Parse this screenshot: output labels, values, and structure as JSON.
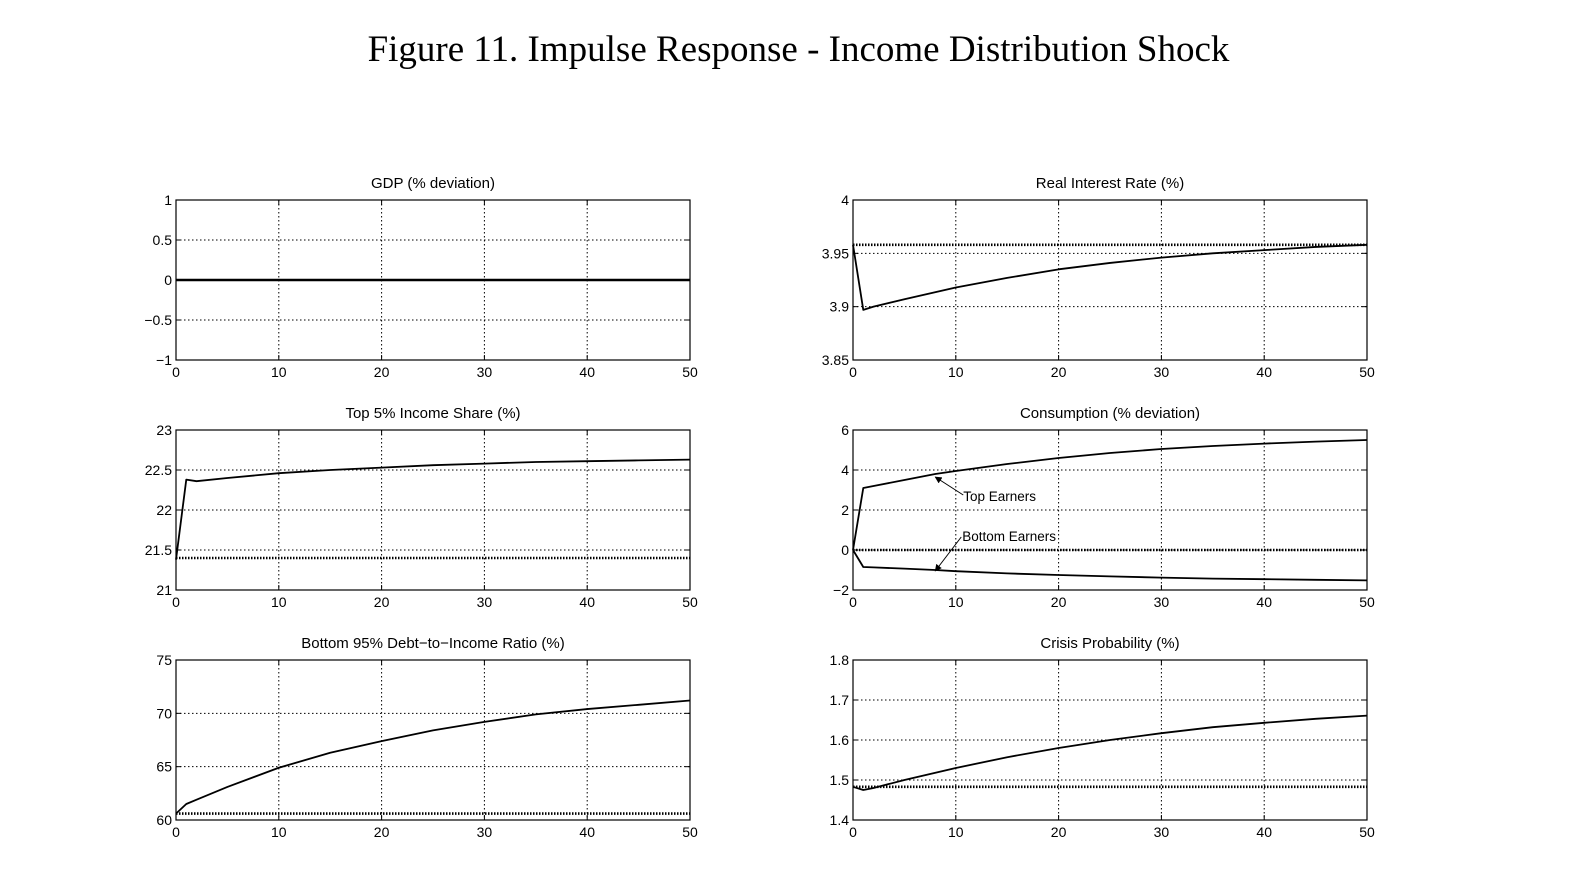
{
  "figure": {
    "title": "Figure 11. Impulse Response - Income Distribution Shock"
  },
  "chart_data": [
    {
      "id": "gdp",
      "type": "line",
      "title": "GDP (% deviation)",
      "xlim": [
        0,
        50
      ],
      "ylim": [
        -1,
        1
      ],
      "xticks": [
        0,
        10,
        20,
        30,
        40,
        50
      ],
      "yticks": [
        -1,
        -0.5,
        0,
        0.5,
        1
      ],
      "ytick_labels": [
        "−1",
        "−0.5",
        "0",
        "0.5",
        "1"
      ],
      "grid": true,
      "series": [
        {
          "style": "solid",
          "x": [
            0,
            50
          ],
          "y": [
            0,
            0
          ]
        }
      ]
    },
    {
      "id": "real-rate",
      "type": "line",
      "title": "Real Interest Rate (%)",
      "xlim": [
        0,
        50
      ],
      "ylim": [
        3.85,
        4
      ],
      "xticks": [
        0,
        10,
        20,
        30,
        40,
        50
      ],
      "yticks": [
        3.85,
        3.9,
        3.95,
        4
      ],
      "ytick_labels": [
        "3.85",
        "3.9",
        "3.95",
        "4"
      ],
      "grid": true,
      "series": [
        {
          "style": "solid",
          "x": [
            0,
            1,
            2,
            5,
            10,
            15,
            20,
            25,
            30,
            35,
            40,
            45,
            50
          ],
          "y": [
            3.958,
            3.897,
            3.9,
            3.907,
            3.918,
            3.927,
            3.935,
            3.941,
            3.946,
            3.95,
            3.953,
            3.956,
            3.958
          ]
        },
        {
          "style": "dotted-thick",
          "x": [
            0,
            50
          ],
          "y": [
            3.958,
            3.958
          ]
        }
      ]
    },
    {
      "id": "top-share",
      "type": "line",
      "title": "Top 5% Income Share (%)",
      "xlim": [
        0,
        50
      ],
      "ylim": [
        21,
        23
      ],
      "xticks": [
        0,
        10,
        20,
        30,
        40,
        50
      ],
      "yticks": [
        21,
        21.5,
        22,
        22.5,
        23
      ],
      "ytick_labels": [
        "21",
        "21.5",
        "22",
        "22.5",
        "23"
      ],
      "grid": true,
      "series": [
        {
          "style": "solid",
          "x": [
            0,
            1,
            2,
            5,
            10,
            15,
            20,
            25,
            30,
            35,
            40,
            45,
            50
          ],
          "y": [
            21.38,
            22.38,
            22.36,
            22.4,
            22.46,
            22.5,
            22.53,
            22.56,
            22.58,
            22.6,
            22.61,
            22.62,
            22.63
          ]
        },
        {
          "style": "dotted-thick",
          "x": [
            0,
            50
          ],
          "y": [
            21.4,
            21.4
          ]
        }
      ]
    },
    {
      "id": "consumption",
      "type": "line",
      "title": "Consumption (% deviation)",
      "xlim": [
        0,
        50
      ],
      "ylim": [
        -2,
        6
      ],
      "xticks": [
        0,
        10,
        20,
        30,
        40,
        50
      ],
      "yticks": [
        -2,
        0,
        2,
        4,
        6
      ],
      "ytick_labels": [
        "−2",
        "0",
        "2",
        "4",
        "6"
      ],
      "grid": true,
      "series": [
        {
          "style": "solid",
          "x": [
            0,
            1,
            2,
            5,
            8,
            10,
            15,
            20,
            25,
            30,
            35,
            40,
            45,
            50
          ],
          "y": [
            0,
            3.1,
            3.2,
            3.5,
            3.8,
            3.95,
            4.3,
            4.6,
            4.85,
            5.05,
            5.2,
            5.32,
            5.42,
            5.5
          ]
        },
        {
          "style": "solid",
          "x": [
            0,
            1,
            2,
            5,
            8,
            10,
            15,
            20,
            25,
            30,
            35,
            40,
            45,
            50
          ],
          "y": [
            0,
            -0.85,
            -0.87,
            -0.93,
            -1.0,
            -1.06,
            -1.17,
            -1.25,
            -1.32,
            -1.38,
            -1.43,
            -1.46,
            -1.49,
            -1.52
          ]
        },
        {
          "style": "dotted-thick",
          "x": [
            0,
            50
          ],
          "y": [
            0,
            0
          ]
        }
      ],
      "annotations": [
        {
          "text": "Top Earners",
          "point": [
            8,
            3.65
          ]
        },
        {
          "text": "Bottom Earners",
          "point": [
            8,
            -1.05
          ]
        }
      ]
    },
    {
      "id": "debt-income",
      "type": "line",
      "title": "Bottom 95% Debt−to−Income Ratio (%)",
      "xlim": [
        0,
        50
      ],
      "ylim": [
        60,
        75
      ],
      "xticks": [
        0,
        10,
        20,
        30,
        40,
        50
      ],
      "yticks": [
        60,
        65,
        70,
        75
      ],
      "ytick_labels": [
        "60",
        "65",
        "70",
        "75"
      ],
      "grid": true,
      "series": [
        {
          "style": "solid",
          "x": [
            0,
            1,
            2,
            5,
            10,
            15,
            20,
            25,
            30,
            35,
            40,
            45,
            50
          ],
          "y": [
            60.6,
            61.5,
            61.9,
            63.1,
            64.9,
            66.3,
            67.4,
            68.4,
            69.2,
            69.9,
            70.4,
            70.8,
            71.2
          ]
        },
        {
          "style": "dotted-thick",
          "x": [
            0,
            50
          ],
          "y": [
            60.6,
            60.6
          ]
        }
      ]
    },
    {
      "id": "crisis-prob",
      "type": "line",
      "title": "Crisis Probability (%)",
      "xlim": [
        0,
        50
      ],
      "ylim": [
        1.4,
        1.8
      ],
      "xticks": [
        0,
        10,
        20,
        30,
        40,
        50
      ],
      "yticks": [
        1.4,
        1.5,
        1.6,
        1.7,
        1.8
      ],
      "ytick_labels": [
        "1.4",
        "1.5",
        "1.6",
        "1.7",
        "1.8"
      ],
      "grid": true,
      "series": [
        {
          "style": "solid",
          "x": [
            0,
            1,
            2,
            5,
            10,
            15,
            20,
            25,
            30,
            35,
            40,
            45,
            50
          ],
          "y": [
            1.483,
            1.475,
            1.48,
            1.5,
            1.53,
            1.557,
            1.58,
            1.6,
            1.617,
            1.632,
            1.643,
            1.653,
            1.661
          ]
        },
        {
          "style": "dotted-thick",
          "x": [
            0,
            50
          ],
          "y": [
            1.483,
            1.483
          ]
        }
      ]
    }
  ]
}
